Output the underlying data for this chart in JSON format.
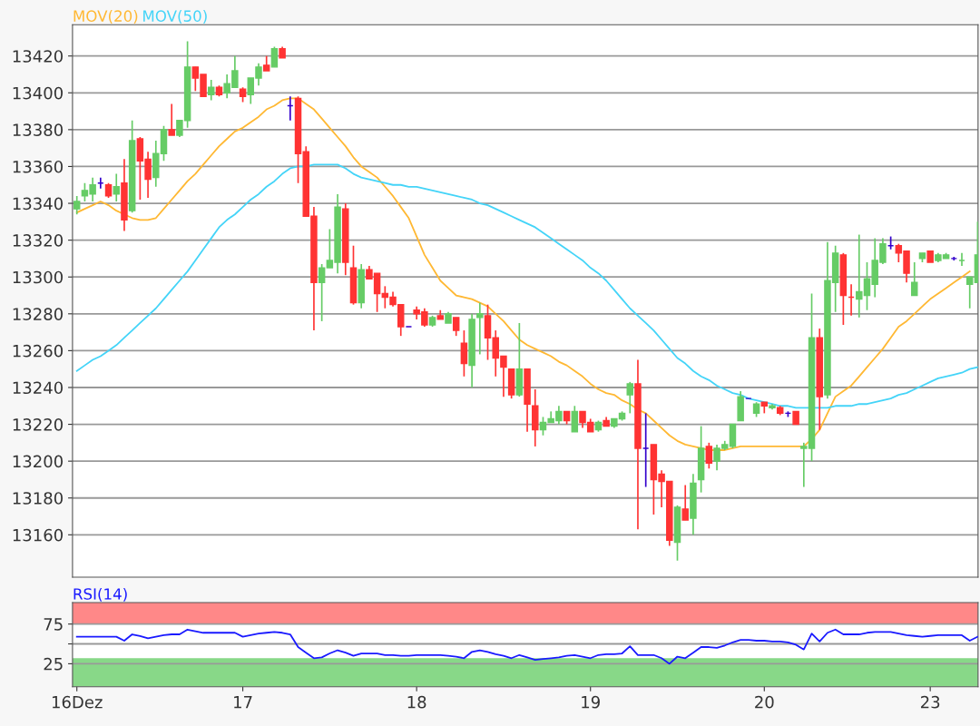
{
  "chart_data": [
    {
      "type": "candlestick",
      "grid": "y",
      "tick_labels": "y",
      "legend": "top left",
      "ylim": [
        13137,
        13437
      ],
      "yticks": [
        13160,
        13180,
        13200,
        13220,
        13240,
        13260,
        13280,
        13300,
        13320,
        13340,
        13360,
        13380,
        13400,
        13420
      ],
      "categories": [
        null,
        null,
        null,
        null,
        null,
        null,
        null,
        null,
        null,
        null,
        null,
        null,
        null,
        null,
        null,
        null,
        null,
        null,
        null,
        null,
        null,
        null,
        null,
        null,
        null,
        null,
        null,
        null,
        null,
        null,
        null,
        null,
        null,
        null,
        null,
        null,
        null,
        null,
        null,
        null,
        null,
        null,
        null,
        null,
        null,
        null,
        null,
        null,
        null,
        null,
        null,
        null,
        null,
        null,
        null,
        null,
        null,
        null,
        null,
        null,
        null,
        null,
        null,
        null,
        null,
        null,
        null,
        null,
        null,
        null,
        null,
        null,
        null,
        null,
        null,
        null,
        null,
        null,
        null,
        null,
        null,
        null,
        null,
        null,
        null,
        null,
        null,
        null,
        null,
        null,
        null,
        null,
        null,
        null,
        null,
        null,
        null,
        null,
        null,
        null,
        null,
        null,
        null,
        null,
        null,
        null,
        null,
        null,
        null,
        null,
        null,
        null,
        null,
        null,
        null
      ],
      "ohlc": [
        [
          13337,
          13344,
          13334,
          13341
        ],
        [
          13344,
          13351,
          13341,
          13347
        ],
        [
          13345,
          13354,
          13341,
          13350
        ],
        [
          13351,
          13354,
          13348,
          13351
        ],
        [
          13350,
          13351,
          13343,
          13344
        ],
        [
          13345,
          13356,
          13341,
          13349
        ],
        [
          13351,
          13364,
          13325,
          13331
        ],
        [
          13336,
          13385,
          13335,
          13374
        ],
        [
          13375,
          13376,
          13342,
          13363
        ],
        [
          13364,
          13368,
          13343,
          13353
        ],
        [
          13354,
          13374,
          13349,
          13367
        ],
        [
          13367,
          13382,
          13363,
          13380
        ],
        [
          13380,
          13394,
          13377,
          13377
        ],
        [
          13377,
          13385,
          13376,
          13385
        ],
        [
          13385,
          13428,
          13381,
          13414
        ],
        [
          13414,
          13414,
          13401,
          13408
        ],
        [
          13410,
          13410,
          13398,
          13398
        ],
        [
          13399,
          13407,
          13396,
          13403
        ],
        [
          13403,
          13404,
          13398,
          13399
        ],
        [
          13400,
          13410,
          13397,
          13405
        ],
        [
          13403,
          13420,
          13403,
          13412
        ],
        [
          13402,
          13403,
          13395,
          13398
        ],
        [
          13399,
          13408,
          13394,
          13408
        ],
        [
          13408,
          13416,
          13404,
          13414
        ],
        [
          13415,
          13420,
          13412,
          13412
        ],
        [
          13414,
          13425,
          13414,
          13424
        ],
        [
          13424,
          13425,
          13419,
          13419
        ],
        [
          13393,
          13398,
          13385,
          13393
        ],
        [
          13397,
          13398,
          13351,
          13367
        ],
        [
          13368,
          13371,
          13333,
          13333
        ],
        [
          13333,
          13338,
          13271,
          13297
        ],
        [
          13297,
          13307,
          13276,
          13305
        ],
        [
          13305,
          13326,
          13305,
          13309
        ],
        [
          13308,
          13345,
          13302,
          13338
        ],
        [
          13337,
          13340,
          13301,
          13308
        ],
        [
          13305,
          13317,
          13285,
          13286
        ],
        [
          13286,
          13307,
          13283,
          13304
        ],
        [
          13304,
          13306,
          13299,
          13299
        ],
        [
          13302,
          13302,
          13281,
          13291
        ],
        [
          13291,
          13295,
          13283,
          13289
        ],
        [
          13289,
          13292,
          13284,
          13285
        ],
        [
          13285,
          13285,
          13268,
          13273
        ],
        [
          13273,
          13273,
          13273,
          13273
        ],
        [
          13282,
          13284,
          13277,
          13280
        ],
        [
          13281,
          13283,
          13273,
          13274
        ],
        [
          13274,
          13279,
          13273,
          13278
        ],
        [
          13279,
          13282,
          13277,
          13277
        ],
        [
          13275,
          13281,
          13275,
          13280
        ],
        [
          13278,
          13278,
          13268,
          13271
        ],
        [
          13264,
          13271,
          13246,
          13253
        ],
        [
          13252,
          13280,
          13240,
          13277
        ],
        [
          13278,
          13286,
          13258,
          13280
        ],
        [
          13279,
          13285,
          13255,
          13267
        ],
        [
          13267,
          13271,
          13246,
          13256
        ],
        [
          13257,
          13257,
          13235,
          13251
        ],
        [
          13250,
          13250,
          13234,
          13236
        ],
        [
          13236,
          13275,
          13235,
          13250
        ],
        [
          13250,
          13250,
          13216,
          13231
        ],
        [
          13230,
          13239,
          13208,
          13217
        ],
        [
          13217,
          13224,
          13214,
          13221
        ],
        [
          13221,
          13227,
          13221,
          13223
        ],
        [
          13222,
          13230,
          13220,
          13227
        ],
        [
          13227,
          13227,
          13220,
          13222
        ],
        [
          13216,
          13230,
          13216,
          13227
        ],
        [
          13227,
          13227,
          13218,
          13221
        ],
        [
          13221,
          13223,
          13216,
          13216
        ],
        [
          13217,
          13222,
          13216,
          13221
        ],
        [
          13222,
          13224,
          13219,
          13219
        ],
        [
          13219,
          13223,
          13218,
          13223
        ],
        [
          13223,
          13227,
          13222,
          13226
        ],
        [
          13236,
          13243,
          13226,
          13242
        ],
        [
          13242,
          13255,
          13163,
          13207
        ],
        [
          13207,
          13226,
          13186,
          13207
        ],
        [
          13209,
          13209,
          13171,
          13190
        ],
        [
          13193,
          13195,
          13175,
          13189
        ],
        [
          13189,
          13189,
          13154,
          13157
        ],
        [
          13156,
          13176,
          13146,
          13175
        ],
        [
          13174,
          13187,
          13168,
          13168
        ],
        [
          13169,
          13193,
          13160,
          13188
        ],
        [
          13190,
          13219,
          13183,
          13207
        ],
        [
          13208,
          13210,
          13196,
          13199
        ],
        [
          13200,
          13209,
          13195,
          13207
        ],
        [
          13207,
          13211,
          13206,
          13209
        ],
        [
          13208,
          13220,
          13207,
          13220
        ],
        [
          13222,
          13238,
          13222,
          13235
        ],
        [
          13234,
          13234,
          13234,
          13234
        ],
        [
          13226,
          13232,
          13224,
          13231
        ],
        [
          13232,
          13232,
          13226,
          13230
        ],
        [
          13229,
          13231,
          13228,
          13230
        ],
        [
          13229,
          13230,
          13225,
          13226
        ],
        [
          13226,
          13227,
          13224,
          13226
        ],
        [
          13227,
          13227,
          13220,
          13220
        ],
        [
          13207,
          13210,
          13186,
          13208
        ],
        [
          13207,
          13291,
          13200,
          13267
        ],
        [
          13267,
          13272,
          13217,
          13235
        ],
        [
          13236,
          13319,
          13234,
          13298
        ],
        [
          13297,
          13317,
          13281,
          13313
        ],
        [
          13312,
          13313,
          13274,
          13290
        ],
        [
          13289,
          13296,
          13279,
          13289
        ],
        [
          13288,
          13323,
          13278,
          13292
        ],
        [
          13290,
          13308,
          13282,
          13299
        ],
        [
          13296,
          13321,
          13289,
          13309
        ],
        [
          13308,
          13321,
          13307,
          13318
        ],
        [
          13317,
          13322,
          13315,
          13317
        ],
        [
          13317,
          13318,
          13308,
          13313
        ],
        [
          13314,
          13314,
          13297,
          13302
        ],
        [
          13290,
          13308,
          13290,
          13297
        ],
        [
          13310,
          13313,
          13308,
          13313
        ],
        [
          13314,
          13314,
          13308,
          13308
        ],
        [
          13309,
          13313,
          13308,
          13312
        ],
        [
          13310,
          13313,
          13310,
          13312
        ],
        [
          13310,
          13311,
          13309,
          13310
        ],
        [
          13309,
          13313,
          13306,
          13309
        ],
        [
          13296,
          13300,
          13283,
          13300
        ],
        [
          13297,
          13330,
          13297,
          13312
        ]
      ],
      "colors": [
        "#66cc66",
        "#66cc66",
        "#66cc66",
        "#3300cc",
        "#ff3333",
        "#66cc66",
        "#ff3333",
        "#66cc66",
        "#ff3333",
        "#ff3333",
        "#66cc66",
        "#66cc66",
        "#ff3333",
        "#66cc66",
        "#66cc66",
        "#ff3333",
        "#ff3333",
        "#66cc66",
        "#ff3333",
        "#66cc66",
        "#66cc66",
        "#ff3333",
        "#66cc66",
        "#66cc66",
        "#ff3333",
        "#66cc66",
        "#ff3333",
        "#3300cc",
        "#ff3333",
        "#ff3333",
        "#ff3333",
        "#66cc66",
        "#66cc66",
        "#66cc66",
        "#ff3333",
        "#ff3333",
        "#66cc66",
        "#ff3333",
        "#ff3333",
        "#ff3333",
        "#ff3333",
        "#ff3333",
        "#3300cc",
        "#ff3333",
        "#ff3333",
        "#66cc66",
        "#ff3333",
        "#66cc66",
        "#ff3333",
        "#ff3333",
        "#66cc66",
        "#66cc66",
        "#ff3333",
        "#ff3333",
        "#ff3333",
        "#ff3333",
        "#66cc66",
        "#ff3333",
        "#ff3333",
        "#66cc66",
        "#66cc66",
        "#66cc66",
        "#ff3333",
        "#66cc66",
        "#ff3333",
        "#ff3333",
        "#66cc66",
        "#ff3333",
        "#66cc66",
        "#66cc66",
        "#66cc66",
        "#ff3333",
        "#3300cc",
        "#ff3333",
        "#ff3333",
        "#ff3333",
        "#66cc66",
        "#ff3333",
        "#66cc66",
        "#66cc66",
        "#ff3333",
        "#66cc66",
        "#66cc66",
        "#66cc66",
        "#66cc66",
        "#3300cc",
        "#66cc66",
        "#ff3333",
        "#66cc66",
        "#ff3333",
        "#3300cc",
        "#ff3333",
        "#66cc66",
        "#66cc66",
        "#ff3333",
        "#66cc66",
        "#66cc66",
        "#ff3333",
        "#ff3333",
        "#66cc66",
        "#66cc66",
        "#66cc66",
        "#66cc66",
        "#3300cc",
        "#ff3333",
        "#ff3333",
        "#66cc66",
        "#66cc66",
        "#ff3333",
        "#66cc66",
        "#66cc66",
        "#3300cc",
        "#66cc66",
        "#66cc66",
        "#66cc66"
      ],
      "series": [
        {
          "name": "MOV(20)",
          "type": "line",
          "color": "#ffb833",
          "values": [
            13335,
            13337,
            13339,
            13341,
            13339,
            13336,
            13334,
            13332,
            13331,
            13331,
            13332,
            13337,
            13342,
            13347,
            13352,
            13356,
            13361,
            13366,
            13371,
            13375,
            13379,
            13381,
            13384,
            13387,
            13391,
            13393,
            13396,
            13397,
            13397,
            13394,
            13391,
            13386,
            13381,
            13376,
            13371,
            13365,
            13360,
            13357,
            13354,
            13349,
            13344,
            13338,
            13332,
            13322,
            13312,
            13305,
            13298,
            13294,
            13290,
            13289,
            13288,
            13286,
            13284,
            13280,
            13276,
            13271,
            13266,
            13263,
            13261,
            13259,
            13257,
            13254,
            13252,
            13249,
            13246,
            13242,
            13239,
            13237,
            13236,
            13233,
            13231,
            13228,
            13226,
            13222,
            13218,
            13214,
            13211,
            13209,
            13208,
            13207,
            13206,
            13206,
            13206,
            13207,
            13208,
            13208,
            13208,
            13208,
            13208,
            13208,
            13208,
            13208,
            13208,
            13212,
            13217,
            13226,
            13235,
            13238,
            13241,
            13246,
            13251,
            13256,
            13261,
            13267,
            13273,
            13276,
            13280,
            13284,
            13288,
            13291,
            13294,
            13297,
            13300,
            13303,
            null
          ]
        },
        {
          "name": "MOV(50)",
          "type": "line",
          "color": "#44d4f8",
          "values": [
            13249,
            13252,
            13255,
            13257,
            13260,
            13263,
            13267,
            13271,
            13275,
            13279,
            13283,
            13288,
            13293,
            13298,
            13303,
            13309,
            13315,
            13321,
            13327,
            13331,
            13334,
            13338,
            13342,
            13345,
            13349,
            13352,
            13356,
            13359,
            13360,
            13360,
            13361,
            13361,
            13361,
            13361,
            13359,
            13356,
            13354,
            13353,
            13352,
            13351,
            13350,
            13350,
            13349,
            13349,
            13348,
            13347,
            13346,
            13345,
            13344,
            13343,
            13342,
            13340,
            13339,
            13337,
            13335,
            13333,
            13331,
            13329,
            13327,
            13324,
            13321,
            13318,
            13315,
            13312,
            13309,
            13305,
            13302,
            13298,
            13293,
            13288,
            13283,
            13279,
            13275,
            13271,
            13266,
            13261,
            13256,
            13253,
            13249,
            13246,
            13244,
            13241,
            13239,
            13237,
            13236,
            13234,
            13233,
            13232,
            13231,
            13230,
            13230,
            13229,
            13229,
            13229,
            13229,
            13229,
            13230,
            13230,
            13230,
            13231,
            13231,
            13232,
            13233,
            13234,
            13236,
            13237,
            13239,
            13241,
            13243,
            13245,
            13246,
            13247,
            13248,
            13250,
            13251
          ]
        }
      ]
    },
    {
      "type": "line",
      "title": "RSI(14)",
      "grid": "y",
      "ylim": [
        -4,
        102
      ],
      "categories": [
        "16Dez",
        null,
        null,
        null,
        null,
        null,
        null,
        null,
        null,
        null,
        null,
        null,
        null,
        null,
        null,
        null,
        null,
        null,
        null,
        null,
        null,
        "17",
        null,
        null,
        null,
        null,
        null,
        null,
        null,
        null,
        null,
        null,
        null,
        null,
        null,
        null,
        null,
        null,
        null,
        null,
        null,
        null,
        null,
        "18",
        null,
        null,
        null,
        null,
        null,
        null,
        null,
        null,
        null,
        null,
        null,
        null,
        null,
        null,
        null,
        null,
        null,
        null,
        null,
        null,
        null,
        "19",
        null,
        null,
        null,
        null,
        null,
        null,
        null,
        null,
        null,
        null,
        null,
        null,
        null,
        null,
        null,
        null,
        null,
        null,
        null,
        null,
        null,
        "20",
        null,
        null,
        null,
        null,
        null,
        null,
        null,
        null,
        null,
        null,
        null,
        null,
        null,
        null,
        null,
        null,
        null,
        null,
        null,
        null,
        "23",
        null,
        null,
        null,
        null,
        null,
        null
      ],
      "yticks": [
        25,
        {
          "value": 50,
          "label": null
        },
        75
      ],
      "bands": [
        {
          "axis": "y",
          "from": 75,
          "to": 102,
          "color": "#ff8888"
        },
        {
          "axis": "y",
          "from": -4,
          "to": 32,
          "color": "#88d888"
        }
      ],
      "series": [
        {
          "color": "#1a1aff",
          "values": [
            59,
            59,
            59,
            59,
            59,
            59,
            54,
            62,
            60,
            57,
            59,
            61,
            62,
            62,
            68,
            66,
            64,
            64,
            64,
            64,
            64,
            59,
            61,
            63,
            64,
            65,
            64,
            62,
            46,
            39,
            32,
            33,
            38,
            42,
            39,
            35,
            38,
            38,
            38,
            36,
            36,
            35,
            35,
            36,
            36,
            36,
            36,
            35,
            34,
            32,
            40,
            42,
            40,
            37,
            35,
            32,
            36,
            33,
            30,
            31,
            32,
            33,
            35,
            36,
            34,
            32,
            36,
            37,
            37,
            38,
            47,
            36,
            36,
            36,
            32,
            25,
            34,
            32,
            39,
            46,
            46,
            45,
            48,
            52,
            55,
            55,
            54,
            54,
            53,
            53,
            52,
            49,
            43,
            63,
            53,
            64,
            68,
            62,
            62,
            62,
            64,
            65,
            65,
            65,
            63,
            61,
            60,
            59,
            60,
            61,
            61,
            61,
            61,
            54,
            59
          ]
        }
      ]
    }
  ]
}
